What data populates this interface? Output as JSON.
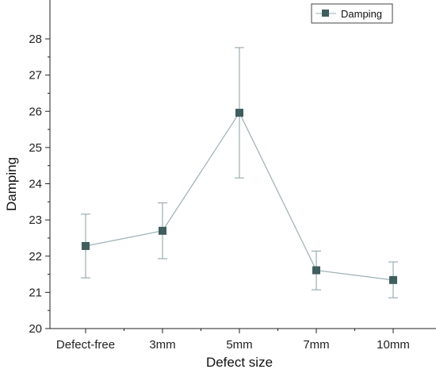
{
  "chart_data": {
    "type": "line",
    "title": "",
    "xlabel": "Defect size",
    "ylabel": "Damping",
    "categories": [
      "Defect-free",
      "3mm",
      "5mm",
      "7mm",
      "10mm"
    ],
    "series": [
      {
        "name": "Damping",
        "values": [
          22.28,
          22.7,
          25.96,
          21.61,
          21.34
        ],
        "error_low": [
          21.4,
          21.93,
          24.16,
          21.07,
          20.85
        ],
        "error_high": [
          23.16,
          23.47,
          27.76,
          22.14,
          21.84
        ]
      }
    ],
    "ylim": [
      20,
      28
    ],
    "yticks": [
      20,
      21,
      22,
      23,
      24,
      25,
      26,
      27,
      28
    ],
    "minor_yticks": true,
    "grid": false,
    "legend_position": "top-right",
    "colors": {
      "line": "#9bb0b4",
      "marker": "#3f5e5e",
      "error_bar": "#8a9ea2",
      "axis": "#222222"
    }
  }
}
